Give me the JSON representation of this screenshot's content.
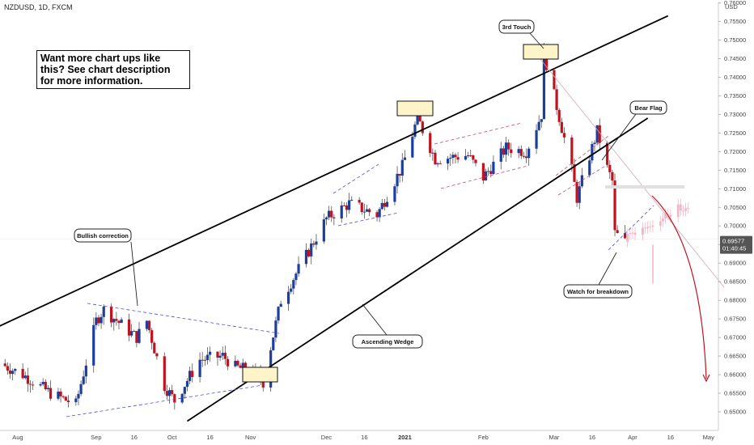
{
  "header": {
    "symbol": "NZDUSD, 1D, FXCM"
  },
  "promo_text": "Want more chart ups like this? See chart description for more information.",
  "price_axis": {
    "currency": "USD",
    "last_price": "0.69577",
    "countdown": "01:40:45",
    "ticks": [
      "0.76000",
      "0.75500",
      "0.75000",
      "0.74500",
      "0.74000",
      "0.73500",
      "0.73000",
      "0.72500",
      "0.72000",
      "0.71500",
      "0.71000",
      "0.70500",
      "0.70000",
      "0.69500",
      "0.69000",
      "0.68500",
      "0.68000",
      "0.67500",
      "0.67000",
      "0.66500",
      "0.66000",
      "0.65500",
      "0.65000"
    ]
  },
  "time_axis": [
    "Aug",
    "Sep",
    "16",
    "Oct",
    "16",
    "Nov",
    "Dec",
    "16",
    "2021",
    "Feb",
    "Mar",
    "16",
    "Apr",
    "16",
    "May"
  ],
  "annotations": {
    "bullish": "Bullish correction",
    "wedge": "Ascending Wedge",
    "touch": "3rd Touch",
    "bear": "Bear Flag",
    "watch": "Watch for breakdown"
  },
  "colors": {
    "up": "#1c3f9e",
    "down": "#c0121f",
    "ghost": "#f2b6c6",
    "callout_box": "#fdf5c9"
  },
  "chart_data": {
    "type": "candlestick",
    "title": "NZDUSD, 1D, FXCM",
    "ylabel": "USD",
    "ylim": [
      0.6475,
      0.7615
    ],
    "x_range": [
      "2020-07-25",
      "2021-05-03"
    ],
    "last_price": 0.69577,
    "key_prices": {
      "start": 0.663,
      "sep_high": 0.6775,
      "oct_low": 0.653,
      "nov_low": 0.658,
      "jan_high": 0.729,
      "feb_low": 0.713,
      "feb_high": 0.7465,
      "mar_low": 0.7075,
      "mar_high": 0.7255,
      "breakdown": 0.7155,
      "current": 0.6957
    },
    "trendlines": {
      "wedge_upper": [
        [
          "2020-07-23",
          0.6725
        ],
        [
          "2021-04-15",
          0.7565
        ]
      ],
      "wedge_lower": [
        [
          "2020-10-07",
          0.6475
        ],
        [
          "2021-04-07",
          0.729
        ]
      ]
    },
    "projection": {
      "ghost_range": [
        0.692,
        0.709
      ],
      "target": 0.659
    }
  }
}
